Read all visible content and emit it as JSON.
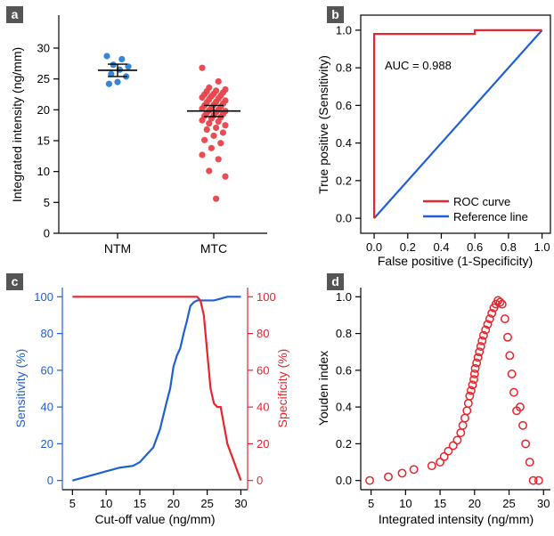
{
  "colors": {
    "blue": "#1f5fd6",
    "red": "#e8242c",
    "scatter_blue": "#2a7fd4",
    "scatter_red": "#e8434a",
    "axis": "#000000",
    "panel_label_bg": "#555555"
  },
  "chart_data": [
    {
      "panel": "a",
      "type": "scatter",
      "ylabel": "Integrated intensity (ng/mm)",
      "ylim": [
        0,
        30
      ],
      "yticks": [
        0,
        5,
        10,
        15,
        20,
        25,
        30
      ],
      "categories": [
        "NTM",
        "MTC"
      ],
      "series": [
        {
          "category": "NTM",
          "mean": 26.4,
          "sd": 1.0,
          "values": [
            28.7,
            28.2,
            27.3,
            27.0,
            26.5,
            25.8,
            25.4,
            24.5,
            24.2
          ]
        },
        {
          "category": "MTC",
          "mean": 19.8,
          "sd": 0.9,
          "values": [
            26.8,
            24.6,
            23.6,
            23.3,
            23.1,
            23.0,
            22.8,
            22.6,
            22.5,
            22.3,
            22.2,
            22.0,
            21.8,
            21.7,
            21.5,
            21.3,
            21.2,
            21.0,
            20.8,
            20.7,
            20.5,
            20.3,
            20.2,
            20.0,
            19.9,
            19.8,
            19.6,
            19.5,
            19.3,
            19.1,
            19.0,
            18.8,
            18.6,
            18.3,
            18.1,
            17.8,
            17.5,
            17.1,
            16.8,
            16.3,
            15.8,
            15.1,
            14.6,
            13.8,
            12.7,
            12.0,
            10.1,
            9.2,
            5.6
          ]
        }
      ]
    },
    {
      "panel": "b",
      "type": "line",
      "xlabel": "False positive (1-Specificity)",
      "ylabel": "True positive (Sensitivity)",
      "xlim": [
        0,
        1
      ],
      "ylim": [
        0,
        1
      ],
      "xticks": [
        0.0,
        0.2,
        0.4,
        0.6,
        0.8,
        1.0
      ],
      "yticks": [
        0.0,
        0.2,
        0.4,
        0.6,
        0.8,
        1.0
      ],
      "annotation": "AUC = 0.988",
      "legend_position": "bottom-right",
      "series": [
        {
          "name": "ROC curve",
          "color": "red",
          "x": [
            0,
            0,
            0.6,
            0.6,
            1.0
          ],
          "y": [
            0,
            0.98,
            0.98,
            1.0,
            1.0
          ]
        },
        {
          "name": "Reference line",
          "color": "blue",
          "x": [
            0,
            1
          ],
          "y": [
            0,
            1
          ]
        }
      ]
    },
    {
      "panel": "c",
      "type": "line",
      "xlabel": "Cut-off value (ng/mm)",
      "ylabel": "Sensitivity (%)",
      "ylabel_right": "Specificity (%)",
      "xlim": [
        3.5,
        31
      ],
      "ylim": [
        -5,
        105
      ],
      "xticks": [
        5,
        10,
        15,
        20,
        25,
        30
      ],
      "yticks": [
        0,
        20,
        40,
        60,
        80,
        100
      ],
      "series": [
        {
          "name": "Sensitivity",
          "color": "blue",
          "axis": "left",
          "x": [
            5,
            7,
            9,
            10,
            12,
            14,
            15,
            16,
            17,
            18,
            19,
            19.5,
            20,
            20.5,
            21,
            21.5,
            22,
            22.5,
            23,
            23.5,
            24,
            25,
            26,
            27,
            28,
            29,
            30
          ],
          "y": [
            0,
            2,
            4,
            5,
            7,
            8,
            10,
            14,
            18,
            28,
            43,
            50,
            62,
            68,
            72,
            80,
            87,
            95,
            97,
            98,
            98,
            98,
            98,
            99,
            100,
            100,
            100
          ]
        },
        {
          "name": "Specificity",
          "color": "red",
          "axis": "right",
          "x": [
            5,
            10,
            15,
            20,
            23.5,
            24,
            24.5,
            25,
            25.5,
            26,
            26.5,
            27,
            27.5,
            28,
            29,
            29.5,
            30
          ],
          "y": [
            100,
            100,
            100,
            100,
            100,
            98,
            90,
            70,
            50,
            42,
            40,
            40,
            30,
            20,
            10,
            5,
            0
          ]
        }
      ]
    },
    {
      "panel": "d",
      "type": "scatter",
      "xlabel": "Integrated intensity (ng/mm)",
      "ylabel": "Youden index",
      "xlim": [
        3.5,
        31
      ],
      "ylim": [
        -0.05,
        1.05
      ],
      "xticks": [
        5,
        10,
        15,
        20,
        25,
        30
      ],
      "yticks": [
        0.0,
        0.2,
        0.4,
        0.6,
        0.8,
        1.0
      ],
      "series": [
        {
          "name": "",
          "color": "red",
          "marker": "open-circle",
          "x": [
            4.8,
            7.5,
            9.5,
            11.2,
            13.8,
            15.0,
            15.6,
            16.2,
            16.9,
            17.5,
            18.0,
            18.3,
            18.6,
            18.9,
            19.1,
            19.3,
            19.5,
            19.7,
            19.9,
            20.0,
            20.1,
            20.3,
            20.5,
            20.7,
            20.9,
            21.1,
            21.3,
            21.6,
            21.9,
            22.2,
            22.5,
            22.8,
            23.1,
            23.4,
            23.7,
            24.0,
            24.4,
            24.8,
            25.1,
            25.4,
            25.7,
            26.1,
            26.6,
            27.0,
            27.4,
            28.0,
            28.5,
            29.3
          ],
          "y": [
            0.0,
            0.02,
            0.04,
            0.06,
            0.08,
            0.1,
            0.13,
            0.16,
            0.19,
            0.22,
            0.26,
            0.3,
            0.34,
            0.38,
            0.42,
            0.46,
            0.49,
            0.52,
            0.55,
            0.58,
            0.61,
            0.64,
            0.67,
            0.7,
            0.73,
            0.76,
            0.79,
            0.82,
            0.85,
            0.88,
            0.91,
            0.94,
            0.96,
            0.98,
            0.97,
            0.96,
            0.88,
            0.78,
            0.68,
            0.58,
            0.48,
            0.38,
            0.4,
            0.3,
            0.2,
            0.1,
            0.0,
            0.0
          ]
        }
      ]
    }
  ],
  "panels": {
    "a": {
      "label": "a",
      "cat1": "NTM",
      "cat2": "MTC"
    },
    "b": {
      "label": "b",
      "legend1": "ROC curve",
      "legend2": "Reference line"
    },
    "c": {
      "label": "c"
    },
    "d": {
      "label": "d"
    }
  }
}
